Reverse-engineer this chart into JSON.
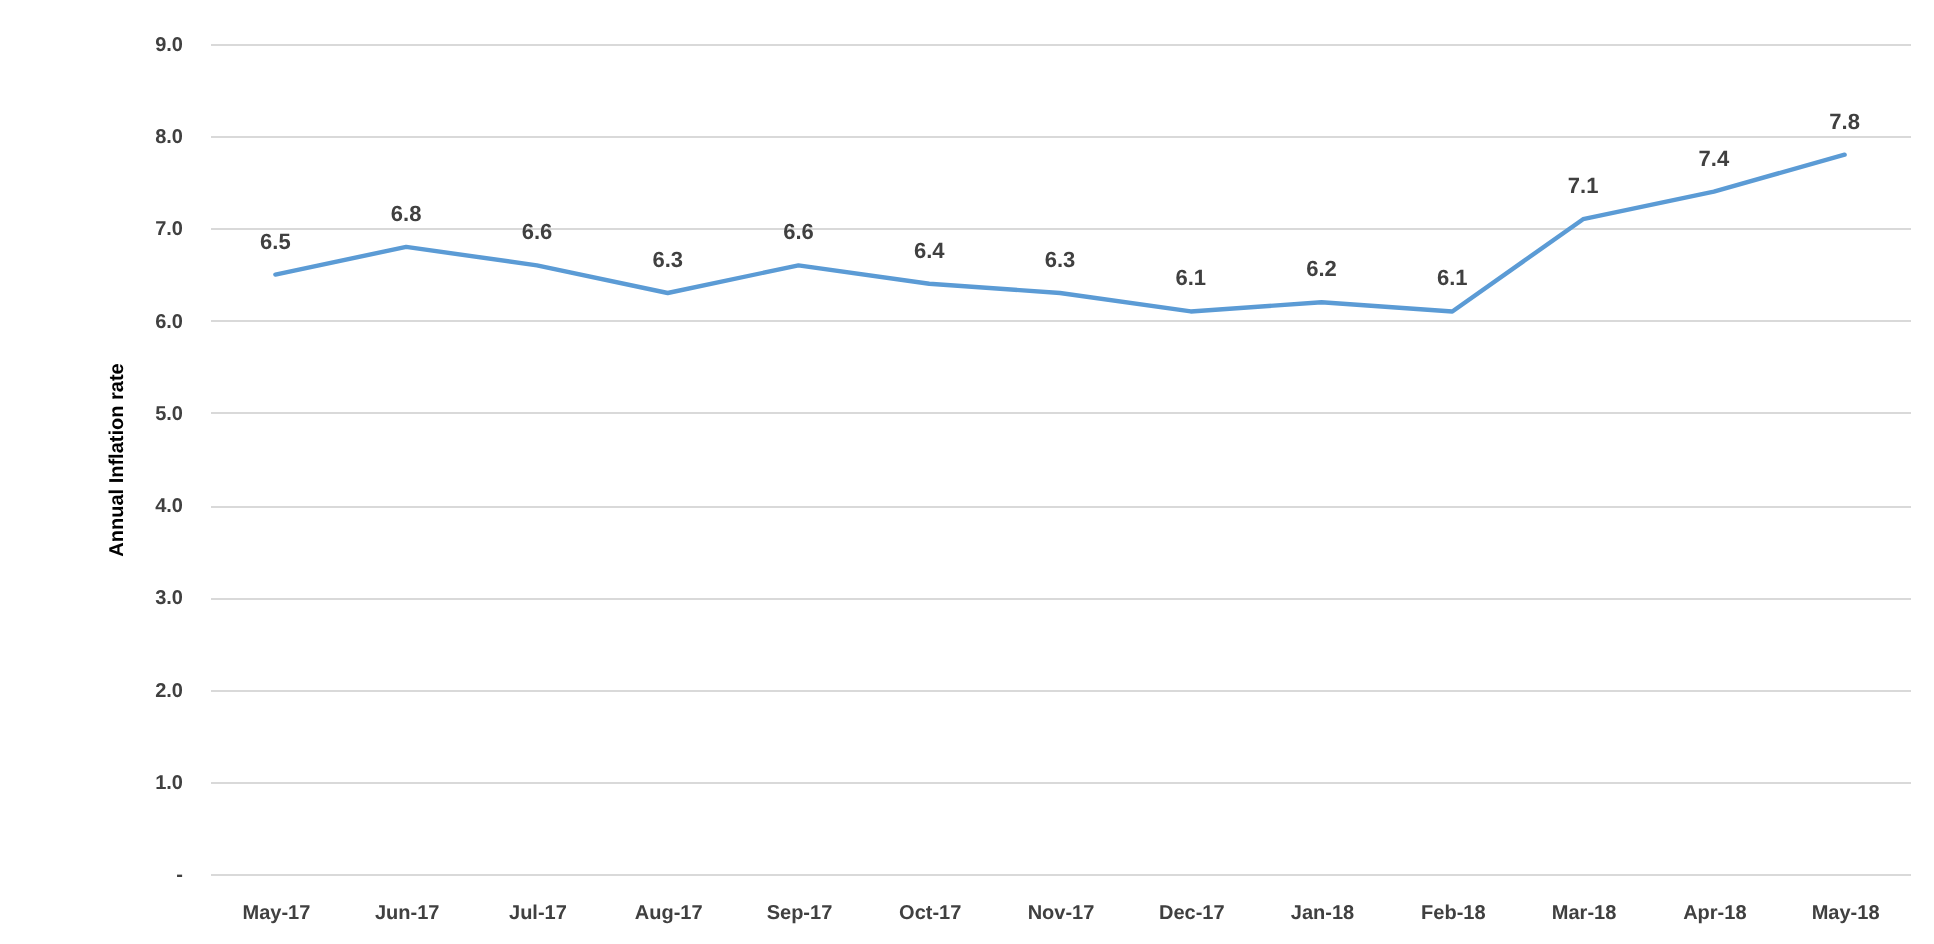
{
  "chart_data": {
    "type": "line",
    "ylabel": "Annual Inflation rate",
    "categories": [
      "May-17",
      "Jun-17",
      "Jul-17",
      "Aug-17",
      "Sep-17",
      "Oct-17",
      "Nov-17",
      "Dec-17",
      "Jan-18",
      "Feb-18",
      "Mar-18",
      "Apr-18",
      "May-18"
    ],
    "series": [
      {
        "color": "#5b9bd5",
        "values": [
          6.5,
          6.8,
          6.6,
          6.3,
          6.6,
          6.4,
          6.3,
          6.1,
          6.2,
          6.1,
          7.1,
          7.4,
          7.8
        ]
      }
    ],
    "ylim": [
      0,
      9
    ],
    "yticks": [
      {
        "value": 0,
        "label": "-"
      },
      {
        "value": 1,
        "label": "1.0"
      },
      {
        "value": 2,
        "label": "2.0"
      },
      {
        "value": 3,
        "label": "3.0"
      },
      {
        "value": 4,
        "label": "4.0"
      },
      {
        "value": 5,
        "label": "5.0"
      },
      {
        "value": 6,
        "label": "6.0"
      },
      {
        "value": 7,
        "label": "7.0"
      },
      {
        "value": 8,
        "label": "8.0"
      },
      {
        "value": 9,
        "label": "9.0"
      }
    ],
    "grid": "y",
    "data_labels": true
  }
}
